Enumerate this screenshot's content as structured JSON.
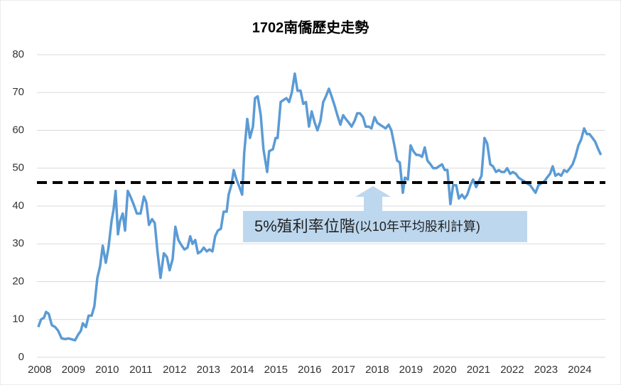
{
  "chart_data": {
    "type": "line",
    "title": "1702南僑歷史走勢",
    "x": [
      2007.96,
      2008.04,
      2008.13,
      2008.19,
      2008.27,
      2008.36,
      2008.46,
      2008.55,
      2008.65,
      2008.76,
      2008.86,
      2008.97,
      2009.05,
      2009.14,
      2009.22,
      2009.28,
      2009.37,
      2009.45,
      2009.54,
      2009.62,
      2009.71,
      2009.79,
      2009.87,
      2009.96,
      2010.04,
      2010.13,
      2010.19,
      2010.25,
      2010.32,
      2010.38,
      2010.46,
      2010.53,
      2010.61,
      2010.69,
      2010.78,
      2010.88,
      2010.99,
      2011.09,
      2011.16,
      2011.24,
      2011.33,
      2011.41,
      2011.49,
      2011.58,
      2011.68,
      2011.77,
      2011.85,
      2011.94,
      2012.02,
      2012.11,
      2012.21,
      2012.29,
      2012.38,
      2012.46,
      2012.53,
      2012.61,
      2012.69,
      2012.78,
      2012.86,
      2012.95,
      2013.03,
      2013.12,
      2013.2,
      2013.28,
      2013.37,
      2013.45,
      2013.54,
      2013.6,
      2013.68,
      2013.75,
      2013.83,
      2013.92,
      2014.0,
      2014.06,
      2014.15,
      2014.23,
      2014.32,
      2014.38,
      2014.46,
      2014.55,
      2014.63,
      2014.74,
      2014.8,
      2014.91,
      2014.99,
      2015.05,
      2015.14,
      2015.22,
      2015.31,
      2015.39,
      2015.47,
      2015.56,
      2015.64,
      2015.73,
      2015.81,
      2015.89,
      2015.98,
      2016.06,
      2016.15,
      2016.23,
      2016.32,
      2016.4,
      2016.48,
      2016.57,
      2016.65,
      2016.74,
      2016.82,
      2016.91,
      2016.99,
      2017.07,
      2017.16,
      2017.24,
      2017.33,
      2017.41,
      2017.49,
      2017.58,
      2017.66,
      2017.75,
      2017.83,
      2017.92,
      2018.0,
      2018.08,
      2018.17,
      2018.25,
      2018.34,
      2018.42,
      2018.51,
      2018.59,
      2018.67,
      2018.76,
      2018.82,
      2018.91,
      2018.99,
      2019.07,
      2019.16,
      2019.24,
      2019.33,
      2019.41,
      2019.49,
      2019.58,
      2019.66,
      2019.75,
      2019.83,
      2019.92,
      2020.0,
      2020.08,
      2020.17,
      2020.25,
      2020.34,
      2020.42,
      2020.51,
      2020.59,
      2020.67,
      2020.76,
      2020.84,
      2020.93,
      2021.01,
      2021.09,
      2021.18,
      2021.26,
      2021.35,
      2021.43,
      2021.52,
      2021.6,
      2021.68,
      2021.77,
      2021.85,
      2021.94,
      2022.02,
      2022.11,
      2022.19,
      2022.27,
      2022.36,
      2022.44,
      2022.53,
      2022.61,
      2022.69,
      2022.78,
      2022.86,
      2022.95,
      2023.03,
      2023.12,
      2023.2,
      2023.28,
      2023.37,
      2023.45,
      2023.54,
      2023.62,
      2023.71,
      2023.79,
      2023.87,
      2023.96,
      2024.04,
      2024.13,
      2024.21,
      2024.29,
      2024.38,
      2024.46,
      2024.55,
      2024.63
    ],
    "series": [
      {
        "name": "1702南僑",
        "color": "#5b9bd5",
        "values": [
          8,
          10,
          10.5,
          12,
          11.5,
          8.5,
          8,
          7,
          5,
          4.8,
          5,
          4.7,
          4.5,
          6,
          7,
          9,
          8,
          11,
          11,
          13.5,
          21,
          24,
          29.5,
          25,
          29,
          36,
          39,
          44,
          32.5,
          36,
          38,
          33.5,
          44,
          42.5,
          40.5,
          38,
          38,
          42.5,
          41,
          35,
          36.5,
          35.5,
          28,
          21,
          27.5,
          26.5,
          23,
          26,
          34.5,
          31,
          29.5,
          28.5,
          29,
          32,
          30,
          31,
          27.5,
          28,
          29,
          28,
          28.5,
          28,
          32,
          33.5,
          34,
          38.5,
          38.5,
          43,
          45.5,
          49.5,
          47,
          45,
          43,
          54,
          63,
          58,
          61,
          68.5,
          69,
          64,
          55,
          49,
          54.5,
          55,
          58,
          58,
          67.5,
          68,
          68.5,
          67.5,
          70,
          75,
          70.5,
          70.5,
          67,
          67.5,
          61,
          65,
          62,
          60,
          62.5,
          67.5,
          69,
          71,
          69,
          66.5,
          64,
          61.5,
          64,
          63,
          62,
          61,
          62.5,
          64.5,
          64.5,
          63.5,
          61,
          61,
          60.5,
          63.5,
          62,
          61.5,
          61,
          60.5,
          61.5,
          60,
          56,
          52,
          51.5,
          43.5,
          47.5,
          47,
          56,
          54.5,
          53.5,
          53.5,
          53,
          55.5,
          52,
          51,
          50,
          50,
          50.5,
          51,
          49.5,
          49.5,
          40.5,
          45.5,
          45.5,
          42,
          43,
          42,
          43,
          45.5,
          47,
          45,
          46.5,
          48,
          58,
          56.5,
          51,
          50.5,
          49,
          49.5,
          49,
          49,
          50,
          48.5,
          49,
          48.5,
          47.5,
          47,
          46.5,
          46,
          45.5,
          44.5,
          43.5,
          45.5,
          46,
          46.5,
          47.5,
          48.5,
          50.5,
          48,
          48.5,
          48,
          49.5,
          49,
          50,
          51,
          53,
          56,
          57.5,
          60.5,
          59,
          59,
          58,
          57,
          55,
          53.5
        ]
      }
    ],
    "xlim": [
      2007.92,
      2024.76
    ],
    "xticks": [
      2008,
      2009,
      2010,
      2011,
      2012,
      2013,
      2014,
      2015,
      2016,
      2017,
      2018,
      2019,
      2020,
      2021,
      2022,
      2023,
      2024
    ],
    "ylim": [
      0,
      80
    ],
    "yticks": [
      0,
      10,
      20,
      30,
      40,
      50,
      60,
      70,
      80
    ],
    "grid": true,
    "reference_line": {
      "value": 46.2,
      "color": "#000000",
      "dashed": true
    },
    "annotation": {
      "main": "5%殖利率位階",
      "note": "(以10年平均股利計算)"
    }
  }
}
